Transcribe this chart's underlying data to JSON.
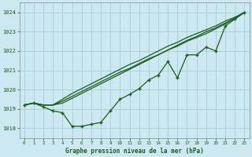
{
  "title": "Graphe pression niveau de la mer (hPa)",
  "bg_color": "#cce8f0",
  "grid_color": "#aaccd8",
  "line_color": "#1a5c1a",
  "xlim": [
    -0.5,
    23.5
  ],
  "ylim": [
    1017.5,
    1024.5
  ],
  "yticks": [
    1018,
    1019,
    1020,
    1021,
    1022,
    1023,
    1024
  ],
  "xticks": [
    0,
    1,
    2,
    3,
    4,
    5,
    6,
    7,
    8,
    9,
    10,
    11,
    12,
    13,
    14,
    15,
    16,
    17,
    18,
    19,
    20,
    21,
    22,
    23
  ],
  "series_marker": [
    1019.2,
    1019.3,
    1019.1,
    1018.9,
    1018.8,
    1018.1,
    1018.1,
    1018.2,
    1018.3,
    1018.9,
    1019.5,
    1019.75,
    1020.05,
    1020.5,
    1020.75,
    1021.45,
    1020.6,
    1021.8,
    1021.8,
    1022.2,
    1022.0,
    1023.3,
    1023.65,
    1024.0
  ],
  "series_line1": [
    1019.2,
    1019.3,
    1019.2,
    1019.2,
    1019.5,
    1019.8,
    1020.05,
    1020.3,
    1020.55,
    1020.8,
    1021.05,
    1021.3,
    1021.5,
    1021.75,
    1022.0,
    1022.25,
    1022.45,
    1022.7,
    1022.9,
    1023.1,
    1023.3,
    1023.55,
    1023.75,
    1024.0
  ],
  "series_line2": [
    1019.2,
    1019.3,
    1019.2,
    1019.2,
    1019.4,
    1019.65,
    1019.9,
    1020.15,
    1020.4,
    1020.65,
    1020.9,
    1021.1,
    1021.35,
    1021.6,
    1021.8,
    1022.05,
    1022.25,
    1022.5,
    1022.7,
    1022.9,
    1023.15,
    1023.4,
    1023.7,
    1024.0
  ],
  "series_line3": [
    1019.2,
    1019.3,
    1019.2,
    1019.2,
    1019.3,
    1019.55,
    1019.8,
    1020.05,
    1020.3,
    1020.55,
    1020.8,
    1021.05,
    1021.3,
    1021.55,
    1021.8,
    1022.05,
    1022.3,
    1022.55,
    1022.75,
    1023.0,
    1023.2,
    1023.45,
    1023.7,
    1024.0
  ]
}
